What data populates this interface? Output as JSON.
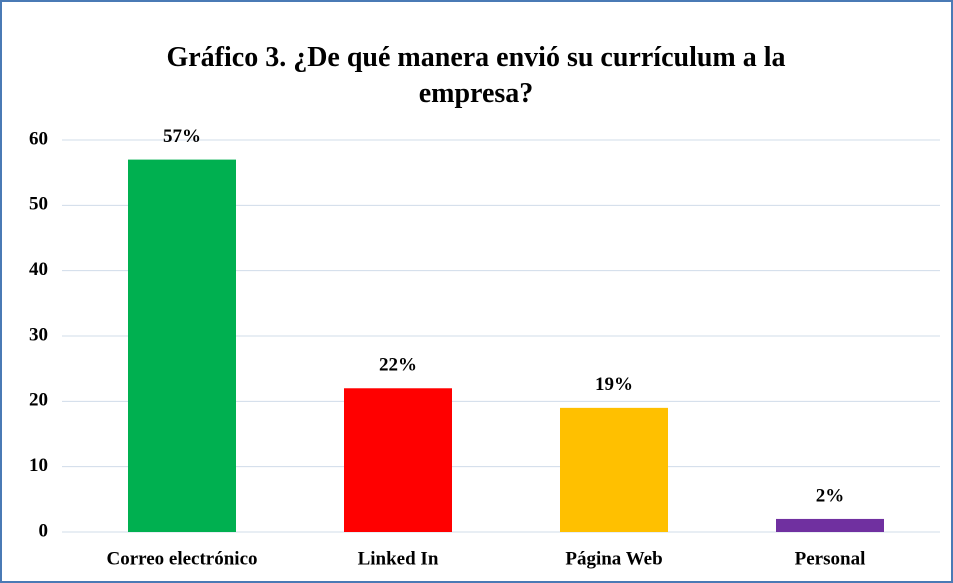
{
  "chart_data": {
    "type": "bar",
    "title": "Gráfico 3. ¿De qué manera envió su currículum a la empresa?",
    "categories": [
      "Correo electrónico",
      "Linked In",
      "Página Web",
      "Personal"
    ],
    "values": [
      57,
      22,
      19,
      2
    ],
    "value_labels": [
      "57%",
      "22%",
      "19%",
      "2%"
    ],
    "colors": [
      "#00b050",
      "#ff0000",
      "#ffc000",
      "#7030a0"
    ],
    "ylim": [
      0,
      60
    ],
    "yticks": [
      0,
      10,
      20,
      30,
      40,
      50,
      60
    ],
    "grid": true
  }
}
